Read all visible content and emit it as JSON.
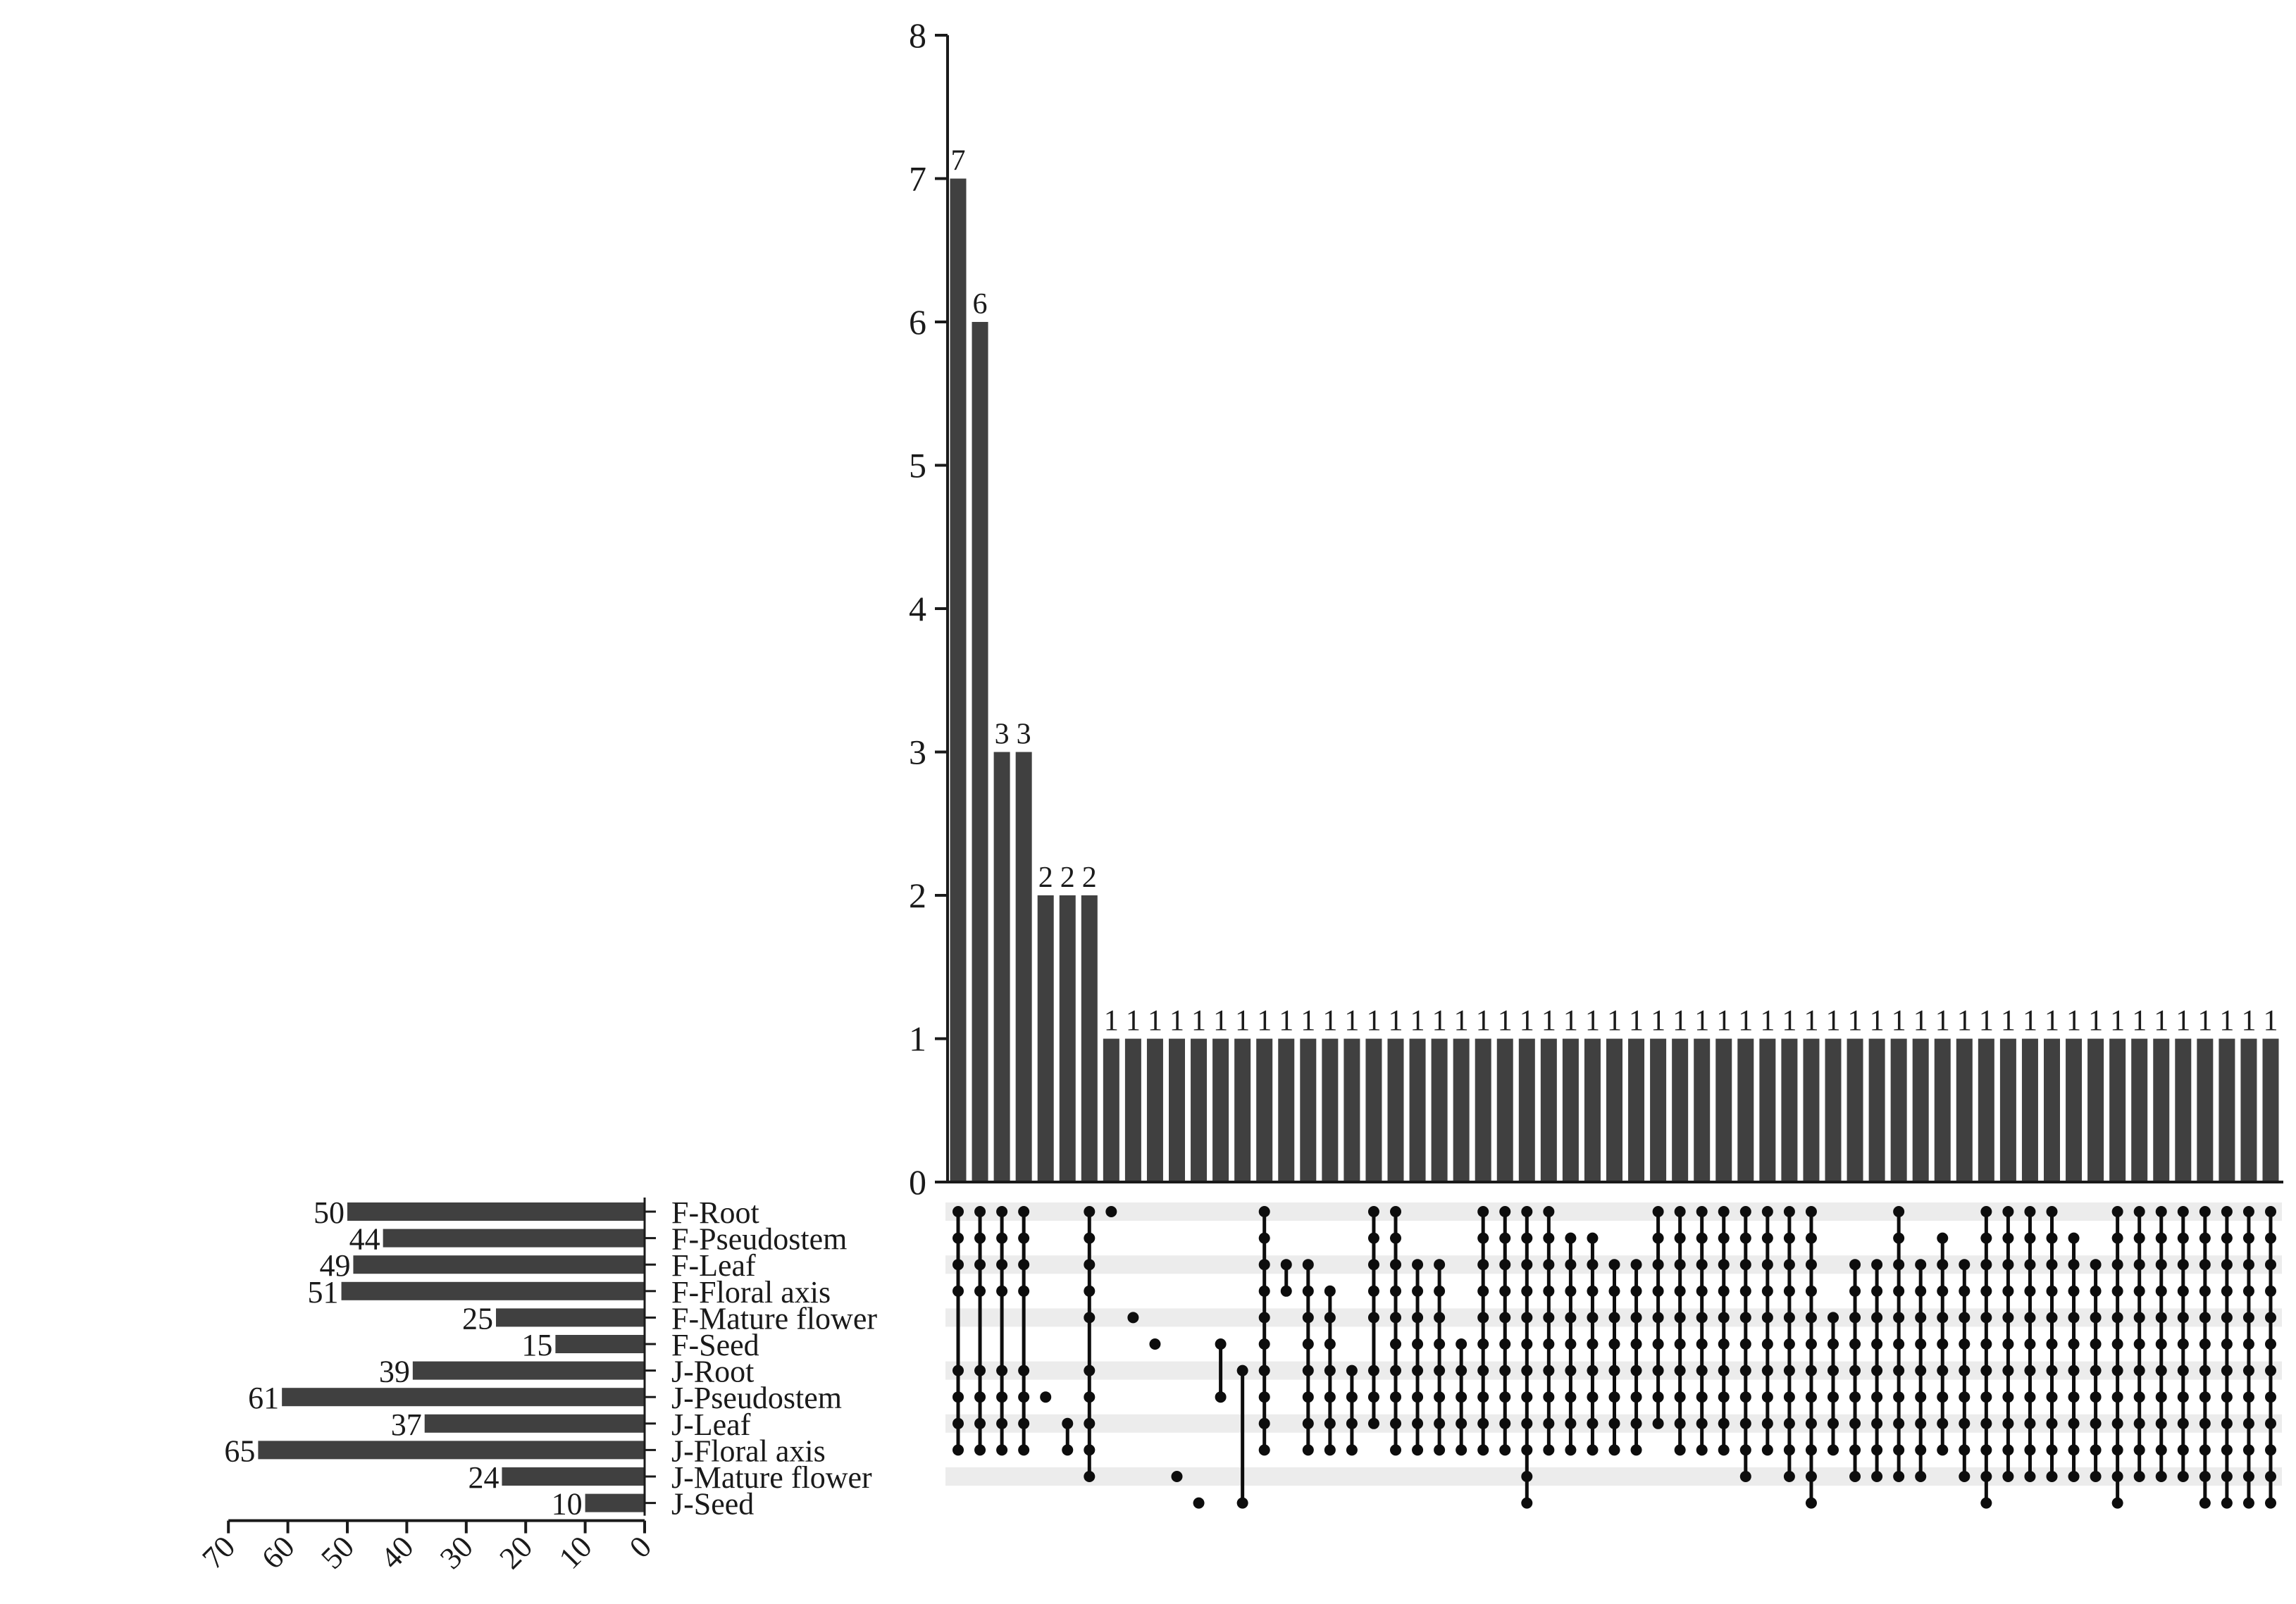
{
  "chart_data": {
    "type": "upset",
    "sets": [
      "F-Root",
      "F-Pseudostem",
      "F-Leaf",
      "F-Floral axis",
      "F-Mature flower",
      "F-Seed",
      "J-Root",
      "J-Pseudostem",
      "J-Leaf",
      "J-Floral axis",
      "J-Mature flower",
      "J-Seed"
    ],
    "set_sizes": [
      50,
      44,
      49,
      51,
      25,
      15,
      39,
      61,
      37,
      65,
      24,
      10
    ],
    "set_size_axis": {
      "ticks": [
        70,
        60,
        50,
        40,
        30,
        20,
        10,
        0
      ],
      "range": [
        0,
        70
      ]
    },
    "intersection_axis": {
      "ticks": [
        0,
        1,
        2,
        3,
        4,
        5,
        6,
        7,
        8
      ],
      "range": [
        0,
        8
      ]
    },
    "intersection_sizes": [
      7,
      6,
      3,
      3,
      2,
      2,
      2,
      1,
      1,
      1,
      1,
      1,
      1,
      1,
      1,
      1,
      1,
      1,
      1,
      1,
      1,
      1,
      1,
      1,
      1,
      1,
      1,
      1,
      1,
      1,
      1,
      1,
      1,
      1,
      1,
      1,
      1,
      1,
      1,
      1,
      1,
      1,
      1,
      1,
      1,
      1,
      1,
      1,
      1,
      1,
      1,
      1,
      1,
      1,
      1,
      1,
      1,
      1,
      1,
      1,
      1
    ],
    "intersection_labels": [
      "7",
      "6",
      "3",
      "3",
      "2",
      "2",
      "2",
      "1",
      "1",
      "1",
      "1",
      "1",
      "1",
      "1",
      "1",
      "1",
      "1",
      "1",
      "1",
      "1",
      "1",
      "1",
      "1",
      "1",
      "1",
      "1",
      "1",
      "1",
      "1",
      "1",
      "1",
      "1",
      "1",
      "1",
      "1",
      "1",
      "1",
      "1",
      "1",
      "1",
      "1",
      "1",
      "1",
      "1",
      "1",
      "1",
      "1",
      "1",
      "1",
      "1",
      "1",
      "1",
      "1",
      "1",
      "1",
      "1",
      "1",
      "1",
      "1",
      "1",
      "1"
    ],
    "intersections": [
      [
        0,
        1,
        2,
        3,
        6,
        7,
        8,
        9
      ],
      [
        0,
        1,
        2,
        3,
        6,
        7,
        8,
        9
      ],
      [
        0,
        1,
        2,
        3,
        6,
        7,
        8,
        9
      ],
      [
        0,
        1,
        2,
        3,
        6,
        7,
        8,
        9
      ],
      [
        7
      ],
      [
        8,
        9
      ],
      [
        0,
        1,
        2,
        3,
        4,
        6,
        7,
        8,
        9,
        10
      ],
      [
        0
      ],
      [
        4
      ],
      [
        5
      ],
      [
        10
      ],
      [
        11
      ],
      [
        5,
        7
      ],
      [
        6,
        11
      ],
      [
        0,
        1,
        2,
        3,
        4,
        5,
        6,
        7,
        8,
        9
      ],
      [
        2,
        3
      ],
      [
        2,
        3,
        4,
        5,
        6,
        7,
        8,
        9
      ],
      [
        3,
        4,
        5,
        6,
        7,
        8,
        9
      ],
      [
        6,
        7,
        8,
        9
      ],
      [
        0,
        1,
        2,
        3,
        4,
        6,
        7,
        8
      ],
      [
        0,
        1,
        2,
        3,
        4,
        5,
        6,
        7,
        8,
        9
      ],
      [
        2,
        3,
        4,
        5,
        6,
        7,
        8,
        9
      ],
      [
        2,
        3,
        4,
        5,
        6,
        7,
        8,
        9
      ],
      [
        5,
        6,
        7,
        8,
        9
      ],
      [
        0,
        1,
        2,
        3,
        4,
        5,
        6,
        7,
        8,
        9
      ],
      [
        0,
        1,
        2,
        3,
        4,
        5,
        6,
        7,
        8,
        9
      ],
      [
        0,
        1,
        2,
        3,
        4,
        5,
        6,
        7,
        8,
        9,
        10,
        11
      ],
      [
        0,
        1,
        2,
        3,
        4,
        5,
        6,
        7,
        8,
        9
      ],
      [
        1,
        2,
        3,
        4,
        5,
        6,
        7,
        8,
        9
      ],
      [
        1,
        2,
        3,
        4,
        5,
        6,
        7,
        8,
        9
      ],
      [
        2,
        3,
        4,
        5,
        6,
        7,
        8,
        9
      ],
      [
        2,
        3,
        4,
        5,
        6,
        7,
        8,
        9
      ],
      [
        0,
        1,
        2,
        3,
        4,
        5,
        6,
        7,
        8
      ],
      [
        0,
        1,
        2,
        3,
        4,
        5,
        6,
        7,
        8,
        9
      ],
      [
        0,
        1,
        2,
        3,
        4,
        5,
        6,
        7,
        8,
        9
      ],
      [
        0,
        1,
        2,
        3,
        4,
        5,
        6,
        7,
        8,
        9
      ],
      [
        0,
        1,
        2,
        3,
        4,
        5,
        6,
        7,
        8,
        9,
        10
      ],
      [
        0,
        1,
        2,
        3,
        4,
        5,
        6,
        7,
        8,
        9
      ],
      [
        0,
        1,
        2,
        3,
        4,
        5,
        6,
        7,
        8,
        9,
        10
      ],
      [
        0,
        1,
        2,
        3,
        4,
        5,
        6,
        7,
        8,
        9,
        10,
        11
      ],
      [
        4,
        5,
        6,
        7,
        8,
        9
      ],
      [
        2,
        3,
        4,
        5,
        6,
        7,
        8,
        9,
        10
      ],
      [
        2,
        3,
        4,
        5,
        6,
        7,
        8,
        9,
        10
      ],
      [
        0,
        1,
        2,
        3,
        4,
        5,
        6,
        7,
        8,
        9,
        10
      ],
      [
        2,
        3,
        4,
        5,
        6,
        7,
        8,
        9,
        10
      ],
      [
        1,
        2,
        3,
        4,
        5,
        6,
        7,
        8,
        9
      ],
      [
        2,
        3,
        4,
        5,
        6,
        7,
        8,
        9,
        10
      ],
      [
        0,
        1,
        2,
        3,
        4,
        5,
        6,
        7,
        8,
        9,
        10,
        11
      ],
      [
        0,
        1,
        2,
        3,
        4,
        5,
        6,
        7,
        8,
        9,
        10
      ],
      [
        0,
        1,
        2,
        3,
        4,
        5,
        6,
        7,
        8,
        9,
        10
      ],
      [
        0,
        1,
        2,
        3,
        4,
        5,
        6,
        7,
        8,
        9,
        10
      ],
      [
        1,
        2,
        3,
        4,
        5,
        6,
        7,
        8,
        9,
        10
      ],
      [
        2,
        3,
        4,
        5,
        6,
        7,
        8,
        9,
        10
      ],
      [
        0,
        1,
        2,
        3,
        4,
        5,
        6,
        7,
        8,
        9,
        10,
        11
      ],
      [
        0,
        1,
        2,
        3,
        4,
        5,
        6,
        7,
        8,
        9,
        10
      ],
      [
        0,
        1,
        2,
        3,
        4,
        5,
        6,
        7,
        8,
        9,
        10
      ],
      [
        0,
        1,
        2,
        3,
        4,
        5,
        6,
        7,
        8,
        9,
        10
      ],
      [
        0,
        1,
        2,
        3,
        4,
        5,
        6,
        7,
        8,
        9,
        10,
        11
      ],
      [
        0,
        1,
        2,
        3,
        4,
        5,
        6,
        7,
        8,
        9,
        10,
        11
      ],
      [
        0,
        1,
        2,
        3,
        4,
        5,
        6,
        7,
        8,
        9,
        10,
        11
      ],
      [
        0,
        1,
        2,
        3,
        4,
        5,
        6,
        7,
        8,
        9,
        10,
        11
      ]
    ],
    "colors": {
      "bar": "#404040",
      "dot": "#0d0d0d",
      "stripe": "#ececec",
      "axis": "#1a1a1a"
    }
  }
}
